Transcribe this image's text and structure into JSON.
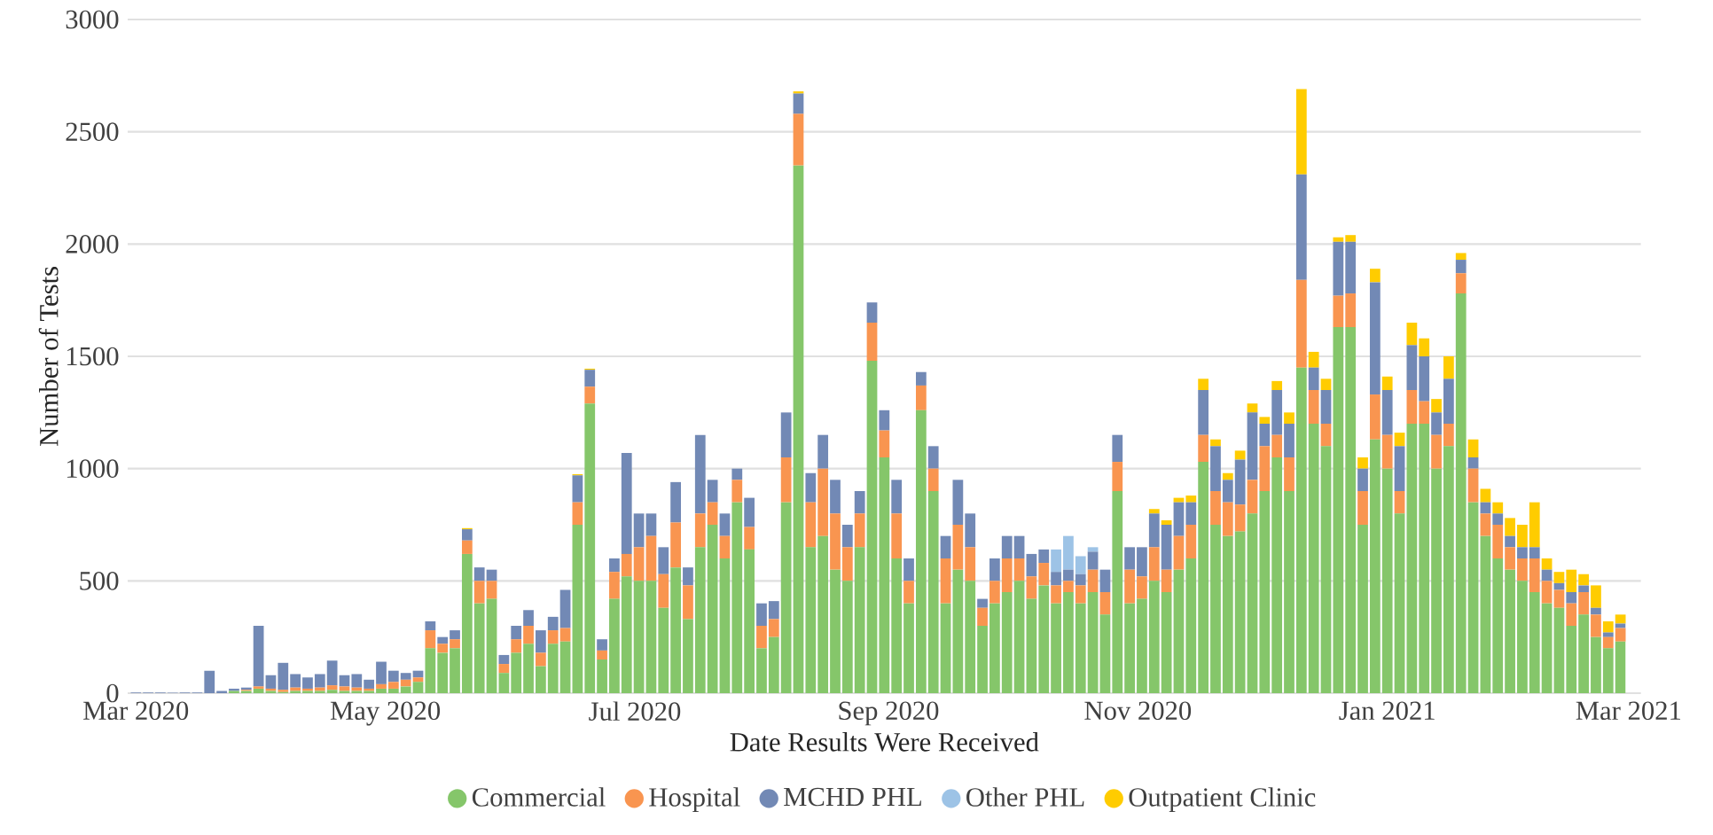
{
  "chart_data": {
    "type": "bar",
    "stacked": true,
    "xlabel": "Date Results Were Received",
    "ylabel": "Number of Tests",
    "grid": "y",
    "legend": "bottom",
    "xlim": [
      "2020-02-28",
      "2021-03-04"
    ],
    "xticks": [
      {
        "value": "2020-03-01",
        "label": "Mar 2020"
      },
      {
        "value": "2020-05-01",
        "label": "May 2020"
      },
      {
        "value": "2020-07-01",
        "label": "Jul 2020"
      },
      {
        "value": "2020-09-01",
        "label": "Sep 2020"
      },
      {
        "value": "2020-11-01",
        "label": "Nov 2020"
      },
      {
        "value": "2021-01-01",
        "label": "Jan 2021"
      },
      {
        "value": "2021-03-01",
        "label": "Mar 2021"
      }
    ],
    "ylim": [
      0,
      3000
    ],
    "yticks": [
      0,
      500,
      1000,
      1500,
      2000,
      2500,
      3000
    ],
    "x": [
      "2020-03-01",
      "2020-03-04",
      "2020-03-07",
      "2020-03-10",
      "2020-03-13",
      "2020-03-16",
      "2020-03-19",
      "2020-03-22",
      "2020-03-25",
      "2020-03-28",
      "2020-03-31",
      "2020-04-03",
      "2020-04-06",
      "2020-04-09",
      "2020-04-12",
      "2020-04-15",
      "2020-04-18",
      "2020-04-21",
      "2020-04-24",
      "2020-04-27",
      "2020-04-30",
      "2020-05-03",
      "2020-05-06",
      "2020-05-09",
      "2020-05-12",
      "2020-05-15",
      "2020-05-18",
      "2020-05-21",
      "2020-05-24",
      "2020-05-27",
      "2020-05-30",
      "2020-06-02",
      "2020-06-05",
      "2020-06-08",
      "2020-06-11",
      "2020-06-14",
      "2020-06-17",
      "2020-06-20",
      "2020-06-23",
      "2020-06-26",
      "2020-06-29",
      "2020-07-02",
      "2020-07-05",
      "2020-07-08",
      "2020-07-11",
      "2020-07-14",
      "2020-07-17",
      "2020-07-20",
      "2020-07-23",
      "2020-07-26",
      "2020-07-29",
      "2020-08-01",
      "2020-08-04",
      "2020-08-07",
      "2020-08-10",
      "2020-08-13",
      "2020-08-16",
      "2020-08-19",
      "2020-08-22",
      "2020-08-25",
      "2020-08-28",
      "2020-08-31",
      "2020-09-03",
      "2020-09-06",
      "2020-09-09",
      "2020-09-12",
      "2020-09-15",
      "2020-09-18",
      "2020-09-21",
      "2020-09-24",
      "2020-09-27",
      "2020-09-30",
      "2020-10-03",
      "2020-10-06",
      "2020-10-09",
      "2020-10-12",
      "2020-10-15",
      "2020-10-18",
      "2020-10-21",
      "2020-10-24",
      "2020-10-27",
      "2020-10-30",
      "2020-11-02",
      "2020-11-05",
      "2020-11-08",
      "2020-11-11",
      "2020-11-14",
      "2020-11-17",
      "2020-11-20",
      "2020-11-23",
      "2020-11-26",
      "2020-11-29",
      "2020-12-02",
      "2020-12-05",
      "2020-12-08",
      "2020-12-11",
      "2020-12-14",
      "2020-12-17",
      "2020-12-20",
      "2020-12-23",
      "2020-12-26",
      "2020-12-29",
      "2021-01-01",
      "2021-01-04",
      "2021-01-07",
      "2021-01-10",
      "2021-01-13",
      "2021-01-16",
      "2021-01-19",
      "2021-01-22",
      "2021-01-25",
      "2021-01-28",
      "2021-01-31",
      "2021-02-03",
      "2021-02-06",
      "2021-02-09",
      "2021-02-12",
      "2021-02-15",
      "2021-02-18",
      "2021-02-21",
      "2021-02-24",
      "2021-02-27"
    ],
    "series": [
      {
        "name": "Commercial",
        "color": "#85c66a",
        "values": [
          0,
          0,
          0,
          0,
          0,
          0,
          0,
          0,
          10,
          10,
          20,
          10,
          5,
          10,
          10,
          10,
          15,
          10,
          10,
          10,
          20,
          20,
          30,
          50,
          200,
          180,
          200,
          620,
          400,
          420,
          90,
          180,
          220,
          120,
          220,
          230,
          750,
          1290,
          150,
          420,
          520,
          500,
          500,
          380,
          560,
          330,
          650,
          750,
          600,
          850,
          640,
          200,
          250,
          850,
          2350,
          650,
          700,
          550,
          500,
          650,
          1480,
          1050,
          600,
          400,
          1260,
          900,
          400,
          550,
          500,
          300,
          400,
          450,
          500,
          420,
          480,
          400,
          450,
          400,
          450,
          350,
          900,
          400,
          420,
          500,
          450,
          550,
          600,
          1030,
          750,
          700,
          720,
          800,
          900,
          1050,
          900,
          1450,
          1200,
          1100,
          1630,
          1630,
          750,
          1130,
          1000,
          800,
          1200,
          1200,
          1000,
          1100,
          1780,
          850,
          700,
          600,
          550,
          500,
          450,
          400,
          380,
          300,
          350,
          250,
          200,
          230
        ]
      },
      {
        "name": "Hospital",
        "color": "#f99550",
        "values": [
          0,
          0,
          0,
          0,
          0,
          0,
          0,
          0,
          0,
          5,
          10,
          10,
          10,
          15,
          10,
          15,
          20,
          20,
          15,
          10,
          20,
          30,
          30,
          20,
          80,
          40,
          40,
          60,
          100,
          80,
          40,
          60,
          80,
          60,
          60,
          60,
          100,
          75,
          40,
          120,
          100,
          150,
          200,
          150,
          200,
          150,
          150,
          100,
          100,
          100,
          100,
          100,
          80,
          200,
          230,
          200,
          300,
          250,
          150,
          150,
          170,
          120,
          200,
          100,
          110,
          100,
          200,
          200,
          150,
          80,
          100,
          150,
          100,
          100,
          100,
          80,
          50,
          80,
          100,
          100,
          130,
          150,
          100,
          150,
          100,
          150,
          150,
          120,
          150,
          150,
          120,
          150,
          200,
          100,
          150,
          390,
          150,
          100,
          140,
          150,
          150,
          200,
          150,
          100,
          150,
          100,
          150,
          100,
          90,
          150,
          100,
          150,
          100,
          100,
          150,
          100,
          80,
          100,
          100,
          100,
          50,
          60
        ]
      },
      {
        "name": "MCHD PHL",
        "color": "#7289b5",
        "values": [
          3,
          3,
          3,
          2,
          3,
          3,
          100,
          10,
          10,
          10,
          270,
          60,
          120,
          60,
          50,
          60,
          110,
          50,
          60,
          40,
          100,
          50,
          30,
          30,
          40,
          30,
          40,
          50,
          60,
          50,
          40,
          60,
          70,
          100,
          60,
          170,
          120,
          75,
          50,
          60,
          450,
          150,
          100,
          120,
          180,
          80,
          350,
          100,
          100,
          50,
          130,
          100,
          80,
          200,
          90,
          130,
          150,
          150,
          100,
          100,
          90,
          90,
          150,
          100,
          60,
          100,
          100,
          200,
          150,
          40,
          100,
          100,
          100,
          100,
          60,
          60,
          50,
          50,
          80,
          100,
          120,
          100,
          130,
          150,
          200,
          150,
          100,
          200,
          200,
          100,
          200,
          300,
          100,
          200,
          150,
          470,
          100,
          150,
          240,
          230,
          100,
          500,
          200,
          200,
          200,
          200,
          100,
          200,
          60,
          50,
          50,
          50,
          50,
          50,
          50,
          50,
          30,
          50,
          30,
          30,
          20,
          20
        ]
      },
      {
        "name": "Other PHL",
        "color": "#9dc3e6",
        "values": [
          0,
          0,
          0,
          0,
          0,
          0,
          0,
          0,
          0,
          0,
          0,
          0,
          0,
          0,
          0,
          0,
          0,
          0,
          0,
          0,
          0,
          0,
          0,
          0,
          0,
          0,
          0,
          0,
          0,
          0,
          0,
          0,
          0,
          0,
          0,
          0,
          0,
          0,
          0,
          0,
          0,
          0,
          0,
          0,
          0,
          0,
          0,
          0,
          0,
          0,
          0,
          0,
          0,
          0,
          0,
          0,
          0,
          0,
          0,
          0,
          0,
          0,
          0,
          0,
          0,
          0,
          0,
          0,
          0,
          0,
          0,
          0,
          0,
          0,
          0,
          100,
          150,
          80,
          20,
          0,
          0,
          0,
          0,
          0,
          0,
          0,
          0,
          0,
          0,
          0,
          0,
          0,
          0,
          0,
          0,
          0,
          0,
          0,
          0,
          0,
          0,
          0,
          0,
          0,
          0,
          0,
          0,
          0,
          0,
          0,
          0,
          0,
          0,
          0,
          0,
          0,
          0,
          0,
          0,
          0,
          0,
          0
        ]
      },
      {
        "name": "Outpatient Clinic",
        "color": "#ffcc00",
        "values": [
          0,
          0,
          0,
          0,
          0,
          0,
          0,
          0,
          0,
          0,
          0,
          0,
          0,
          0,
          0,
          0,
          0,
          0,
          0,
          0,
          0,
          0,
          0,
          0,
          0,
          0,
          0,
          5,
          0,
          0,
          0,
          0,
          0,
          0,
          0,
          0,
          5,
          5,
          0,
          0,
          0,
          0,
          0,
          0,
          0,
          0,
          0,
          0,
          0,
          0,
          0,
          0,
          0,
          0,
          10,
          0,
          0,
          0,
          0,
          0,
          0,
          0,
          0,
          0,
          0,
          0,
          0,
          0,
          0,
          0,
          0,
          0,
          0,
          0,
          0,
          0,
          0,
          0,
          0,
          0,
          0,
          0,
          0,
          20,
          20,
          20,
          30,
          50,
          30,
          30,
          40,
          40,
          30,
          40,
          50,
          380,
          70,
          50,
          20,
          30,
          50,
          60,
          60,
          60,
          100,
          80,
          60,
          100,
          30,
          80,
          60,
          50,
          80,
          100,
          200,
          50,
          50,
          100,
          50,
          100,
          50,
          40
        ]
      }
    ]
  }
}
